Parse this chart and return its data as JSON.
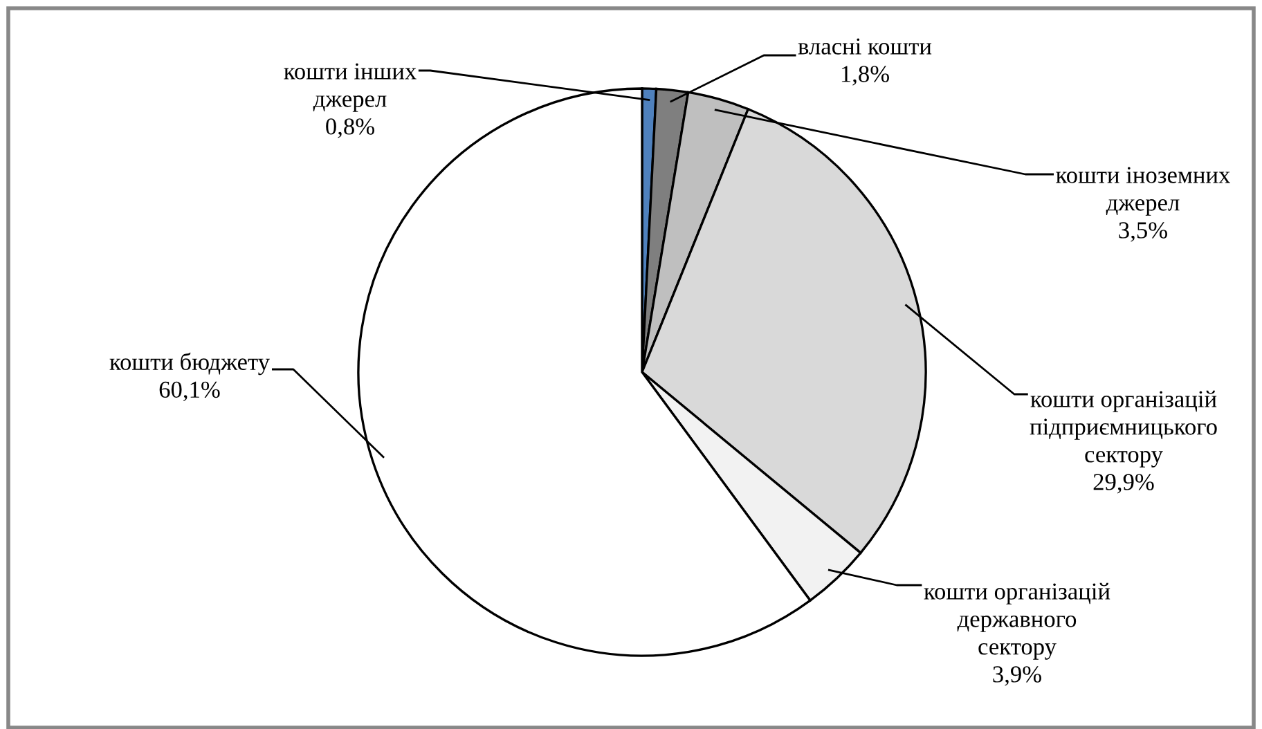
{
  "chart_data": {
    "type": "pie",
    "categories": [
      "кошти інших\nджерел",
      "власні кошти",
      "кошти іноземних\nджерел",
      "кошти організацій\nпідприємницького\nсектору",
      "кошти організацій\nдержавного\nсектору",
      "кошти бюджету"
    ],
    "values": [
      0.8,
      1.8,
      3.5,
      29.9,
      3.9,
      60.1
    ],
    "value_labels": [
      "0,8%",
      "1,8%",
      "3,5%",
      "29,9%",
      "3,9%",
      "60,1%"
    ],
    "colors": [
      "#4f81bd",
      "#7f7f7f",
      "#bfbfbf",
      "#d9d9d9",
      "#f2f2f2",
      "#ffffff"
    ],
    "legend": false
  }
}
